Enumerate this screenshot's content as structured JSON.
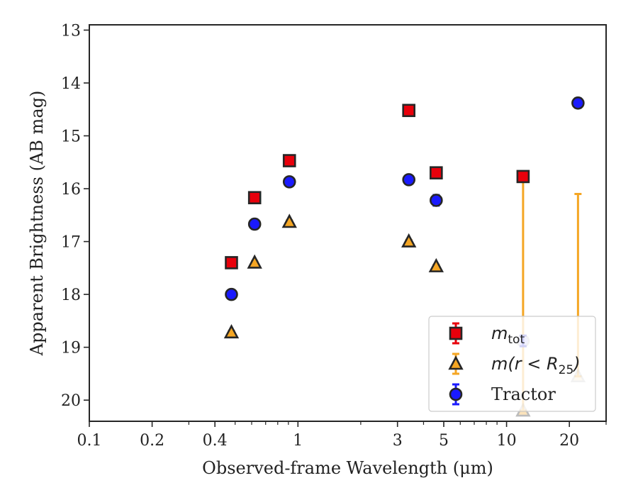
{
  "chart_data": {
    "type": "scatter",
    "xlabel": "Observed-frame Wavelength (μm)",
    "ylabel": "Apparent Brightness (AB mag)",
    "x_scale": "log",
    "xlim": [
      0.1,
      30
    ],
    "ylim": [
      20.4,
      12.9
    ],
    "y_inverted": true,
    "x_ticks": [
      {
        "value": 0.1,
        "label": "0.1"
      },
      {
        "value": 0.2,
        "label": "0.2"
      },
      {
        "value": 0.4,
        "label": "0.4"
      },
      {
        "value": 1,
        "label": "1"
      },
      {
        "value": 3,
        "label": "3"
      },
      {
        "value": 5,
        "label": "5"
      },
      {
        "value": 10,
        "label": "10"
      },
      {
        "value": 20,
        "label": "20"
      }
    ],
    "y_ticks": [
      {
        "value": 13,
        "label": "13"
      },
      {
        "value": 14,
        "label": "14"
      },
      {
        "value": 15,
        "label": "15"
      },
      {
        "value": 16,
        "label": "16"
      },
      {
        "value": 17,
        "label": "17"
      },
      {
        "value": 18,
        "label": "18"
      },
      {
        "value": 19,
        "label": "19"
      },
      {
        "value": 20,
        "label": "20"
      }
    ],
    "grid": false,
    "legend_position": "lower-right",
    "series": [
      {
        "name": "m_tot",
        "legend_label": "m",
        "legend_sub": "tot",
        "marker": "square",
        "color": "#e8000b",
        "errcolor": "#e8000b",
        "points": [
          {
            "x": 0.48,
            "y": 17.4,
            "err": [
              0.05,
              0.05
            ]
          },
          {
            "x": 0.62,
            "y": 16.17,
            "err": [
              0.05,
              0.05
            ]
          },
          {
            "x": 0.91,
            "y": 15.47,
            "err": [
              0.05,
              0.05
            ]
          },
          {
            "x": 3.4,
            "y": 14.52,
            "err": [
              0.05,
              0.05
            ]
          },
          {
            "x": 4.6,
            "y": 15.7,
            "err": [
              0.05,
              0.05
            ]
          },
          {
            "x": 12.0,
            "y": 15.77,
            "err": [
              0.05,
              0.05
            ]
          }
        ]
      },
      {
        "name": "m(r < R_25)",
        "legend_label": "m(r < R",
        "legend_sub": "25",
        "legend_tail": ")",
        "marker": "triangle",
        "color": "#f5a623",
        "errcolor": "#f5a623",
        "points": [
          {
            "x": 0.48,
            "y": 18.72,
            "err": [
              0.03,
              0.03
            ],
            "alpha": 1
          },
          {
            "x": 0.62,
            "y": 17.4,
            "err": [
              0.03,
              0.03
            ],
            "alpha": 1
          },
          {
            "x": 0.91,
            "y": 16.63,
            "err": [
              0.03,
              0.03
            ],
            "alpha": 1
          },
          {
            "x": 3.4,
            "y": 17.0,
            "err": [
              0.03,
              0.03
            ],
            "alpha": 1
          },
          {
            "x": 4.6,
            "y": 17.47,
            "err": [
              0.03,
              0.03
            ],
            "alpha": 1
          },
          {
            "x": 12.0,
            "y": 20.2,
            "err": [
              4.4,
              0.0
            ],
            "alpha": 0.3
          },
          {
            "x": 22.0,
            "y": 19.55,
            "err": [
              3.45,
              0.0
            ],
            "alpha": 0.3
          }
        ]
      },
      {
        "name": "Tractor",
        "legend_label": "Tractor",
        "marker": "circle",
        "color": "#1a1aff",
        "errcolor": "#1a1aff",
        "points": [
          {
            "x": 0.48,
            "y": 18.0,
            "err": [
              0.08,
              0.08
            ],
            "alpha": 1
          },
          {
            "x": 0.62,
            "y": 16.67,
            "err": [
              0.09,
              0.09
            ],
            "alpha": 1
          },
          {
            "x": 0.91,
            "y": 15.87,
            "err": [
              0.07,
              0.07
            ],
            "alpha": 1
          },
          {
            "x": 3.4,
            "y": 15.83,
            "err": [
              0.07,
              0.07
            ],
            "alpha": 1
          },
          {
            "x": 4.6,
            "y": 16.22,
            "err": [
              0.1,
              0.1
            ],
            "alpha": 1
          },
          {
            "x": 12.0,
            "y": 18.88,
            "err": [
              0.1,
              0.1
            ],
            "alpha": 0.3
          },
          {
            "x": 22.0,
            "y": 14.38,
            "err": [
              0.09,
              0.09
            ],
            "alpha": 1
          }
        ]
      }
    ]
  }
}
